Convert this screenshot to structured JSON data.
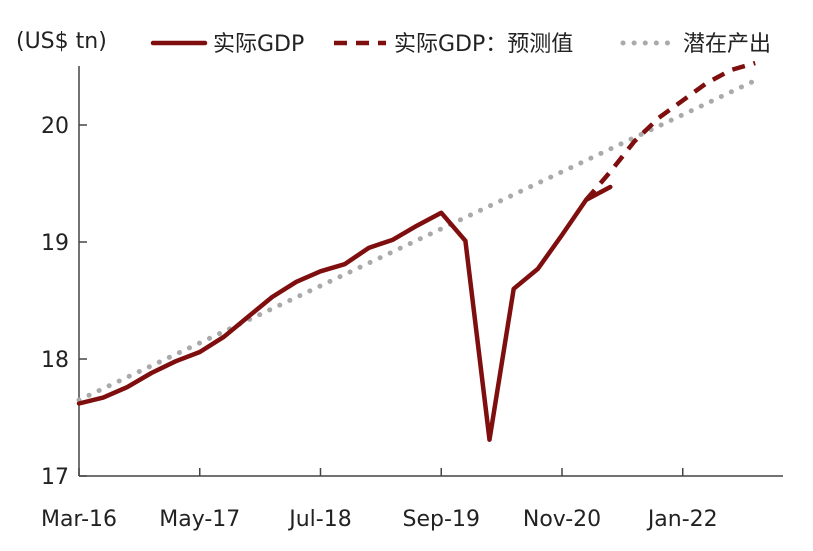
{
  "chart_data": {
    "type": "line",
    "ylabel": "(US$ tn)",
    "ylim": [
      17,
      20.5
    ],
    "yticks": [
      17,
      18,
      19,
      20
    ],
    "x_ticks": [
      "Mar-16",
      "May-17",
      "Jul-18",
      "Sep-19",
      "Nov-20",
      "Jan-22"
    ],
    "x_tick_quarter_index": [
      0,
      5,
      10,
      15,
      20,
      25
    ],
    "legend_position": "top",
    "grid": false,
    "series": [
      {
        "name": "实际GDP",
        "style": "solid",
        "color": "#7f0e0e",
        "x": [
          0,
          1,
          2,
          3,
          4,
          5,
          6,
          7,
          8,
          9,
          10,
          11,
          12,
          13,
          14,
          15,
          16,
          17,
          18,
          19,
          20,
          21,
          22
        ],
        "values": [
          17.62,
          17.67,
          17.76,
          17.88,
          17.98,
          18.06,
          18.19,
          18.36,
          18.53,
          18.66,
          18.75,
          18.81,
          18.95,
          19.02,
          19.14,
          19.25,
          19.01,
          17.31,
          18.6,
          18.77,
          19.06,
          19.36,
          19.47
        ]
      },
      {
        "name": "实际GDP：预测值",
        "style": "dashed",
        "color": "#7f0e0e",
        "x": [
          21,
          22,
          23,
          24,
          25,
          26,
          27,
          28
        ],
        "values": [
          19.36,
          19.6,
          19.86,
          20.06,
          20.21,
          20.36,
          20.47,
          20.53
        ]
      },
      {
        "name": "潜在产出",
        "style": "dotted",
        "color": "#aaaaaa",
        "x": [
          0,
          28
        ],
        "values": [
          17.65,
          20.38
        ]
      }
    ]
  }
}
